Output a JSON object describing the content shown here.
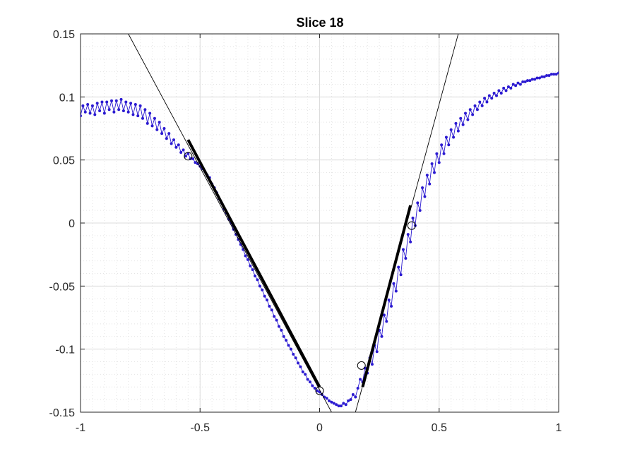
{
  "chart_data": {
    "type": "line",
    "title": "Slice 18",
    "xlabel": "",
    "ylabel": "",
    "xlim": [
      -1,
      1
    ],
    "ylim": [
      -0.15,
      0.15
    ],
    "xticks": [
      -1,
      -0.5,
      0,
      0.5,
      1
    ],
    "xtick_labels": [
      "-1",
      "-0.5",
      "0",
      "0.5",
      "1"
    ],
    "yticks": [
      -0.15,
      -0.1,
      -0.05,
      0,
      0.05,
      0.1,
      0.15
    ],
    "ytick_labels": [
      "-0.15",
      "-0.1",
      "-0.05",
      "0",
      "0.05",
      "0.1",
      "0.15"
    ],
    "grid": true,
    "minor_grid": true,
    "colors": {
      "data": "#2b1ad1",
      "fit": "#000000",
      "grid": "#dcdcdc"
    },
    "series": [
      {
        "kind": "data",
        "points": [
          [
            -1.0,
            0.085
          ],
          [
            -0.99,
            0.093
          ],
          [
            -0.98,
            0.088
          ],
          [
            -0.97,
            0.094
          ],
          [
            -0.96,
            0.087
          ],
          [
            -0.95,
            0.093
          ],
          [
            -0.94,
            0.086
          ],
          [
            -0.93,
            0.095
          ],
          [
            -0.92,
            0.089
          ],
          [
            -0.91,
            0.096
          ],
          [
            -0.9,
            0.087
          ],
          [
            -0.89,
            0.096
          ],
          [
            -0.88,
            0.09
          ],
          [
            -0.87,
            0.097
          ],
          [
            -0.86,
            0.088
          ],
          [
            -0.85,
            0.097
          ],
          [
            -0.84,
            0.09
          ],
          [
            -0.83,
            0.098
          ],
          [
            -0.82,
            0.089
          ],
          [
            -0.81,
            0.096
          ],
          [
            -0.8,
            0.088
          ],
          [
            -0.79,
            0.095
          ],
          [
            -0.78,
            0.086
          ],
          [
            -0.77,
            0.094
          ],
          [
            -0.76,
            0.085
          ],
          [
            -0.75,
            0.093
          ],
          [
            -0.74,
            0.083
          ],
          [
            -0.73,
            0.09
          ],
          [
            -0.72,
            0.079
          ],
          [
            -0.71,
            0.087
          ],
          [
            -0.7,
            0.077
          ],
          [
            -0.69,
            0.083
          ],
          [
            -0.68,
            0.074
          ],
          [
            -0.67,
            0.08
          ],
          [
            -0.66,
            0.071
          ],
          [
            -0.65,
            0.075
          ],
          [
            -0.64,
            0.067
          ],
          [
            -0.63,
            0.071
          ],
          [
            -0.62,
            0.063
          ],
          [
            -0.61,
            0.066
          ],
          [
            -0.6,
            0.06
          ],
          [
            -0.59,
            0.062
          ],
          [
            -0.58,
            0.056
          ],
          [
            -0.57,
            0.058
          ],
          [
            -0.56,
            0.053
          ],
          [
            -0.55,
            0.055
          ],
          [
            -0.54,
            0.051
          ],
          [
            -0.53,
            0.051
          ],
          [
            -0.52,
            0.048
          ],
          [
            -0.51,
            0.047
          ],
          [
            -0.5,
            0.045
          ],
          [
            -0.49,
            0.043
          ],
          [
            -0.48,
            0.041
          ],
          [
            -0.47,
            0.038
          ],
          [
            -0.46,
            0.036
          ],
          [
            -0.45,
            0.031
          ],
          [
            -0.44,
            0.028
          ],
          [
            -0.43,
            0.024
          ],
          [
            -0.42,
            0.019
          ],
          [
            -0.41,
            0.016
          ],
          [
            -0.4,
            0.011
          ],
          [
            -0.39,
            0.008
          ],
          [
            -0.38,
            0.003
          ],
          [
            -0.37,
            0.0
          ],
          [
            -0.36,
            -0.005
          ],
          [
            -0.35,
            -0.009
          ],
          [
            -0.34,
            -0.013
          ],
          [
            -0.33,
            -0.017
          ],
          [
            -0.32,
            -0.021
          ],
          [
            -0.31,
            -0.026
          ],
          [
            -0.3,
            -0.029
          ],
          [
            -0.29,
            -0.034
          ],
          [
            -0.28,
            -0.037
          ],
          [
            -0.27,
            -0.042
          ],
          [
            -0.26,
            -0.045
          ],
          [
            -0.25,
            -0.05
          ],
          [
            -0.24,
            -0.053
          ],
          [
            -0.23,
            -0.058
          ],
          [
            -0.22,
            -0.061
          ],
          [
            -0.21,
            -0.066
          ],
          [
            -0.2,
            -0.069
          ],
          [
            -0.19,
            -0.074
          ],
          [
            -0.18,
            -0.077
          ],
          [
            -0.17,
            -0.082
          ],
          [
            -0.16,
            -0.085
          ],
          [
            -0.15,
            -0.09
          ],
          [
            -0.14,
            -0.093
          ],
          [
            -0.13,
            -0.097
          ],
          [
            -0.12,
            -0.1
          ],
          [
            -0.11,
            -0.104
          ],
          [
            -0.1,
            -0.107
          ],
          [
            -0.09,
            -0.111
          ],
          [
            -0.08,
            -0.114
          ],
          [
            -0.07,
            -0.118
          ],
          [
            -0.06,
            -0.12
          ],
          [
            -0.05,
            -0.124
          ],
          [
            -0.04,
            -0.126
          ],
          [
            -0.03,
            -0.129
          ],
          [
            -0.02,
            -0.131
          ],
          [
            -0.01,
            -0.133
          ],
          [
            0.0,
            -0.134
          ],
          [
            0.01,
            -0.136
          ],
          [
            0.02,
            -0.138
          ],
          [
            0.03,
            -0.139
          ],
          [
            0.04,
            -0.141
          ],
          [
            0.05,
            -0.142
          ],
          [
            0.06,
            -0.143
          ],
          [
            0.07,
            -0.144
          ],
          [
            0.08,
            -0.145
          ],
          [
            0.09,
            -0.145
          ],
          [
            0.1,
            -0.143
          ],
          [
            0.11,
            -0.144
          ],
          [
            0.12,
            -0.141
          ],
          [
            0.13,
            -0.14
          ],
          [
            0.14,
            -0.136
          ],
          [
            0.15,
            -0.138
          ],
          [
            0.16,
            -0.131
          ],
          [
            0.17,
            -0.124
          ],
          [
            0.18,
            -0.126
          ],
          [
            0.19,
            -0.115
          ],
          [
            0.2,
            -0.119
          ],
          [
            0.21,
            -0.107
          ],
          [
            0.22,
            -0.112
          ],
          [
            0.23,
            -0.097
          ],
          [
            0.24,
            -0.102
          ],
          [
            0.25,
            -0.085
          ],
          [
            0.26,
            -0.09
          ],
          [
            0.27,
            -0.073
          ],
          [
            0.28,
            -0.078
          ],
          [
            0.29,
            -0.061
          ],
          [
            0.3,
            -0.066
          ],
          [
            0.31,
            -0.048
          ],
          [
            0.32,
            -0.054
          ],
          [
            0.33,
            -0.035
          ],
          [
            0.34,
            -0.041
          ],
          [
            0.35,
            -0.021
          ],
          [
            0.36,
            -0.028
          ],
          [
            0.37,
            -0.009
          ],
          [
            0.38,
            -0.015
          ],
          [
            0.39,
            0.004
          ],
          [
            0.4,
            -0.002
          ],
          [
            0.41,
            0.016
          ],
          [
            0.42,
            0.01
          ],
          [
            0.43,
            0.028
          ],
          [
            0.44,
            0.021
          ],
          [
            0.45,
            0.038
          ],
          [
            0.46,
            0.031
          ],
          [
            0.47,
            0.047
          ],
          [
            0.48,
            0.04
          ],
          [
            0.49,
            0.055
          ],
          [
            0.5,
            0.048
          ],
          [
            0.51,
            0.062
          ],
          [
            0.52,
            0.055
          ],
          [
            0.53,
            0.068
          ],
          [
            0.54,
            0.062
          ],
          [
            0.55,
            0.074
          ],
          [
            0.56,
            0.068
          ],
          [
            0.57,
            0.079
          ],
          [
            0.58,
            0.073
          ],
          [
            0.59,
            0.083
          ],
          [
            0.6,
            0.078
          ],
          [
            0.61,
            0.087
          ],
          [
            0.62,
            0.082
          ],
          [
            0.63,
            0.09
          ],
          [
            0.64,
            0.086
          ],
          [
            0.65,
            0.093
          ],
          [
            0.66,
            0.09
          ],
          [
            0.67,
            0.096
          ],
          [
            0.68,
            0.093
          ],
          [
            0.69,
            0.099
          ],
          [
            0.7,
            0.096
          ],
          [
            0.71,
            0.101
          ],
          [
            0.72,
            0.099
          ],
          [
            0.73,
            0.103
          ],
          [
            0.74,
            0.101
          ],
          [
            0.75,
            0.105
          ],
          [
            0.76,
            0.103
          ],
          [
            0.77,
            0.107
          ],
          [
            0.78,
            0.105
          ],
          [
            0.79,
            0.108
          ],
          [
            0.8,
            0.107
          ],
          [
            0.81,
            0.11
          ],
          [
            0.82,
            0.109
          ],
          [
            0.83,
            0.111
          ],
          [
            0.84,
            0.11
          ],
          [
            0.85,
            0.112
          ],
          [
            0.86,
            0.112
          ],
          [
            0.87,
            0.113
          ],
          [
            0.88,
            0.113
          ],
          [
            0.89,
            0.114
          ],
          [
            0.9,
            0.114
          ],
          [
            0.91,
            0.115
          ],
          [
            0.92,
            0.115
          ],
          [
            0.93,
            0.116
          ],
          [
            0.94,
            0.116
          ],
          [
            0.95,
            0.117
          ],
          [
            0.96,
            0.117
          ],
          [
            0.97,
            0.118
          ],
          [
            0.98,
            0.118
          ],
          [
            0.99,
            0.118
          ],
          [
            1.0,
            0.119
          ]
        ]
      },
      {
        "kind": "fit-line-thin",
        "points": [
          [
            -0.8,
            0.15
          ],
          [
            0.05,
            -0.15
          ]
        ]
      },
      {
        "kind": "fit-line-thin",
        "points": [
          [
            0.15,
            -0.15
          ],
          [
            0.58,
            0.15
          ]
        ]
      },
      {
        "kind": "fit-line-bold",
        "points": [
          [
            -0.55,
            0.066
          ],
          [
            0.0,
            -0.13
          ]
        ]
      },
      {
        "kind": "fit-line-bold",
        "points": [
          [
            0.18,
            -0.13
          ],
          [
            0.38,
            0.014
          ]
        ]
      }
    ],
    "markers": [
      {
        "shape": "circle",
        "x": -0.55,
        "y": 0.053
      },
      {
        "shape": "circle",
        "x": 0.0,
        "y": -0.133
      },
      {
        "shape": "circle",
        "x": 0.175,
        "y": -0.113
      },
      {
        "shape": "circle",
        "x": 0.385,
        "y": -0.002
      }
    ]
  }
}
